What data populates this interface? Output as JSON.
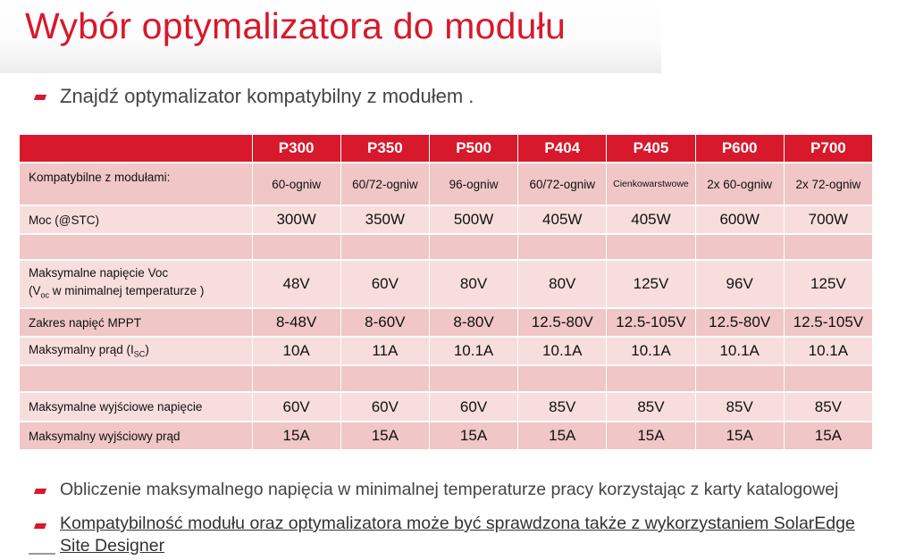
{
  "title": "Wybór optymalizatora do modułu",
  "intro": "Znajdź optymalizator kompatybilny z modułem .",
  "columns": [
    "",
    "P300",
    "P350",
    "P500",
    "P404",
    "P405",
    "P600",
    "P700"
  ],
  "rows": [
    {
      "label": "Kompatybilne z modułami:",
      "values": [
        "60-ogniw",
        "60/72-ogniw",
        "96-ogniw",
        "60/72-ogniw",
        "Cienkowarstwowe",
        "2x 60-ogniw",
        "2x 72-ogniw"
      ]
    },
    {
      "label": "Moc (@STC)",
      "values": [
        "300W",
        "350W",
        "500W",
        "405W",
        "405W",
        "600W",
        "700W"
      ]
    },
    {
      "label": "",
      "values": [
        "",
        "",
        "",
        "",
        "",
        "",
        ""
      ]
    },
    {
      "label_line1": "Maksymalne napięcie Voc",
      "label_line2_pre": "(V",
      "label_line2_sub": "oc",
      "label_line2_post": " w minimalnej temperaturze )",
      "values": [
        "48V",
        "60V",
        "80V",
        "80V",
        "125V",
        "96V",
        "125V"
      ]
    },
    {
      "label": "Zakres napięć MPPT",
      "values": [
        "8-48V",
        "8-60V",
        "8-80V",
        "12.5-80V",
        "12.5-105V",
        "12.5-80V",
        "12.5-105V"
      ]
    },
    {
      "label_pre": "Maksymalny prąd (I",
      "label_sub": "SC",
      "label_post": ")",
      "values": [
        "10A",
        "11A",
        "10.1A",
        "10.1A",
        "10.1A",
        "10.1A",
        "10.1A"
      ]
    },
    {
      "label": "",
      "values": [
        "",
        "",
        "",
        "",
        "",
        "",
        ""
      ]
    },
    {
      "label": "Maksymalne wyjściowe napięcie",
      "values": [
        "60V",
        "60V",
        "60V",
        "85V",
        "85V",
        "85V",
        "85V"
      ]
    },
    {
      "label": "Maksymalny wyjściowy prąd",
      "values": [
        "15A",
        "15A",
        "15A",
        "15A",
        "15A",
        "15A",
        "15A"
      ]
    }
  ],
  "bullets": [
    "Obliczenie maksymalnego napięcia w minimalnej temperaturze pracy korzystając z karty katalogowej",
    "Kompatybilność modułu oraz optymalizatora może być sprawdzona także z wykorzystaniem SolarEdge",
    "Site Designer"
  ],
  "colors": {
    "accent": "#d7192b",
    "row_light": "#f8dddd",
    "row_dark": "#f0c6c6"
  }
}
